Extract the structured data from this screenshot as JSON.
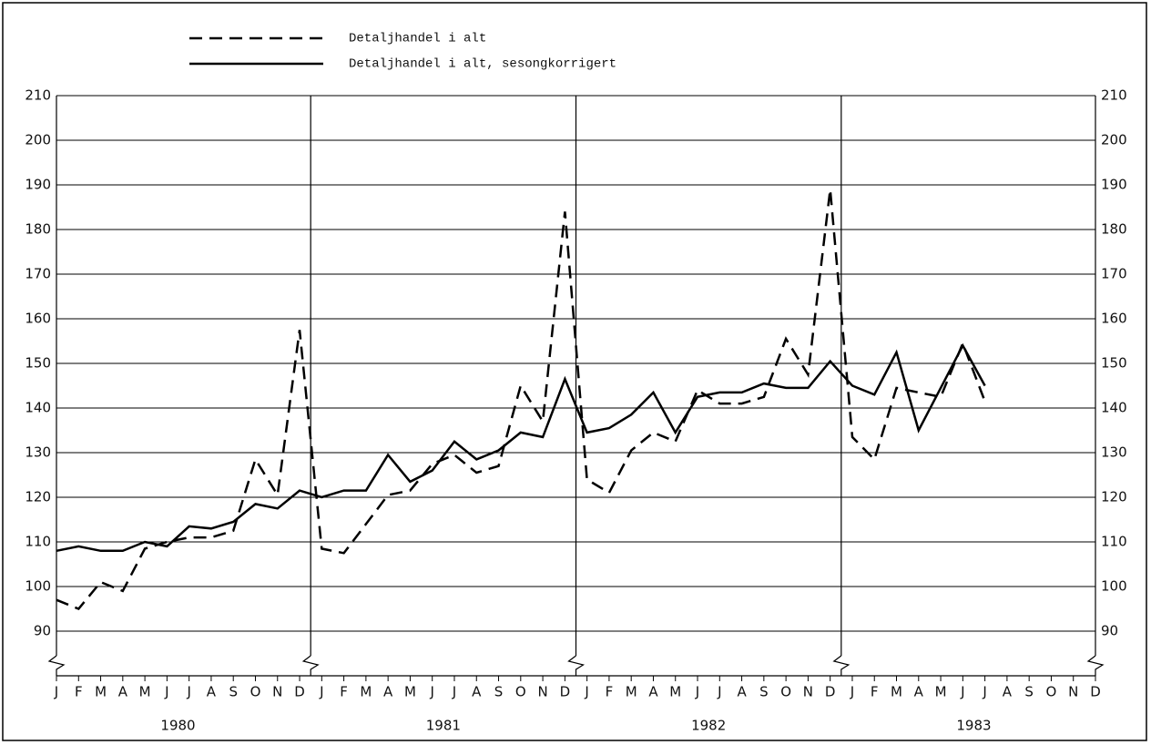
{
  "chart_data": {
    "type": "line",
    "categories": [
      "J",
      "F",
      "M",
      "A",
      "M",
      "J",
      "J",
      "A",
      "S",
      "O",
      "N",
      "D",
      "J",
      "F",
      "M",
      "A",
      "M",
      "J",
      "J",
      "A",
      "S",
      "O",
      "N",
      "D",
      "J",
      "F",
      "M",
      "A",
      "M",
      "J",
      "J",
      "A",
      "S",
      "O",
      "N",
      "D",
      "J",
      "F",
      "M",
      "A",
      "M",
      "J",
      "J",
      "A",
      "S",
      "O",
      "N",
      "D"
    ],
    "years": [
      "1980",
      "1981",
      "1982",
      "1983"
    ],
    "series": [
      {
        "name": "Detaljhandel i alt",
        "color": "#000000",
        "dash": true,
        "values": [
          97,
          95,
          101,
          99,
          108.5,
          110,
          111,
          111,
          112.5,
          128.5,
          120.5,
          157.5,
          108.5,
          107.5,
          114,
          120.5,
          121.5,
          127.5,
          129.5,
          125.5,
          127,
          145,
          137,
          184,
          124,
          121,
          130.5,
          134.5,
          132.5,
          144,
          141,
          141,
          142.5,
          155.5,
          147.5,
          189,
          133.5,
          128.5,
          144.5,
          143.5,
          142.5,
          154.5,
          141.5,
          null,
          null,
          null,
          null,
          null
        ]
      },
      {
        "name": "Detaljhandel i alt, sesongkorrigert",
        "color": "#000000",
        "dash": false,
        "values": [
          108,
          109,
          108,
          108,
          110,
          109,
          113.5,
          113,
          114.5,
          118.5,
          117.5,
          121.5,
          120,
          121.5,
          121.5,
          129.5,
          123.5,
          126,
          132.5,
          128.5,
          130.5,
          134.5,
          133.5,
          146.5,
          134.5,
          135.5,
          138.5,
          143.5,
          134.5,
          142.5,
          143.5,
          143.5,
          145.5,
          144.5,
          144.5,
          150.5,
          145,
          143,
          152.5,
          135,
          144.5,
          154,
          145,
          null,
          null,
          null,
          null,
          null
        ]
      }
    ],
    "ylim": [
      80,
      210
    ],
    "yticks": [
      90,
      100,
      110,
      120,
      130,
      140,
      150,
      160,
      170,
      180,
      190,
      200,
      210
    ],
    "grid": true
  }
}
